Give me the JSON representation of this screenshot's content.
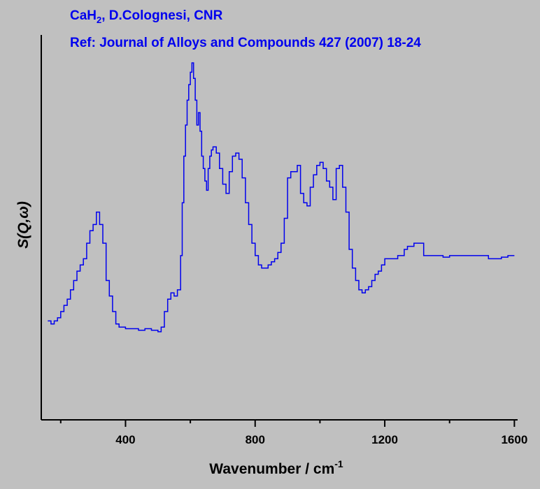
{
  "chart_data": {
    "type": "line",
    "title_line1": {
      "main": "CaH",
      "sub": "2",
      "rest": ", D.Colognesi, CNR"
    },
    "title_line2": "Ref: Journal of Alloys and Compounds 427 (2007) 18-24",
    "xlabel": {
      "main": "Wavenumber / cm",
      "sup": "-1"
    },
    "ylabel": "S(Q,ω)",
    "xlim": [
      140,
      1610
    ],
    "ylim": [
      0,
      1
    ],
    "x_ticks": [
      400,
      800,
      1200,
      1600
    ],
    "x_tick_labels": [
      "400",
      "800",
      "1200",
      "1600"
    ],
    "x_minor_ticks": [
      200,
      600,
      1000,
      1400
    ],
    "line_style": "step",
    "grid": false,
    "legend": "none",
    "colors": {
      "line": "#0000ee",
      "title": "#0000ee",
      "axes": "#000000",
      "background": "#c0c0c0"
    },
    "series": [
      {
        "x": [
          160,
          170,
          180,
          190,
          200,
          210,
          220,
          230,
          240,
          250,
          260,
          270,
          280,
          290,
          300,
          310,
          320,
          330,
          340,
          350,
          360,
          370,
          380,
          390,
          400,
          420,
          440,
          460,
          480,
          500,
          510,
          520,
          530,
          540,
          550,
          560,
          570,
          575,
          580,
          585,
          590,
          595,
          600,
          605,
          610,
          615,
          620,
          625,
          630,
          635,
          640,
          645,
          650,
          655,
          660,
          665,
          670,
          680,
          690,
          700,
          710,
          720,
          730,
          740,
          750,
          760,
          770,
          780,
          790,
          800,
          810,
          820,
          830,
          840,
          850,
          860,
          870,
          880,
          890,
          900,
          910,
          920,
          930,
          940,
          950,
          960,
          970,
          980,
          990,
          1000,
          1010,
          1020,
          1030,
          1040,
          1050,
          1060,
          1070,
          1080,
          1090,
          1100,
          1110,
          1120,
          1130,
          1140,
          1150,
          1160,
          1170,
          1180,
          1190,
          1200,
          1210,
          1220,
          1230,
          1240,
          1250,
          1260,
          1270,
          1280,
          1290,
          1300,
          1320,
          1340,
          1360,
          1380,
          1400,
          1420,
          1440,
          1460,
          1480,
          1500,
          1520,
          1540,
          1560,
          1580,
          1600
        ],
        "y": [
          0.17,
          0.16,
          0.17,
          0.18,
          0.2,
          0.22,
          0.24,
          0.27,
          0.3,
          0.33,
          0.35,
          0.37,
          0.42,
          0.46,
          0.48,
          0.52,
          0.48,
          0.42,
          0.3,
          0.25,
          0.2,
          0.16,
          0.15,
          0.15,
          0.145,
          0.145,
          0.14,
          0.145,
          0.14,
          0.135,
          0.15,
          0.2,
          0.24,
          0.26,
          0.25,
          0.27,
          0.38,
          0.55,
          0.7,
          0.8,
          0.88,
          0.93,
          0.97,
          1.0,
          0.95,
          0.88,
          0.8,
          0.84,
          0.78,
          0.7,
          0.66,
          0.62,
          0.59,
          0.66,
          0.7,
          0.72,
          0.73,
          0.71,
          0.66,
          0.61,
          0.58,
          0.65,
          0.7,
          0.71,
          0.69,
          0.63,
          0.55,
          0.48,
          0.42,
          0.38,
          0.35,
          0.34,
          0.34,
          0.35,
          0.36,
          0.37,
          0.39,
          0.42,
          0.5,
          0.63,
          0.65,
          0.65,
          0.67,
          0.58,
          0.55,
          0.54,
          0.6,
          0.64,
          0.67,
          0.68,
          0.66,
          0.62,
          0.6,
          0.56,
          0.66,
          0.67,
          0.6,
          0.52,
          0.4,
          0.34,
          0.3,
          0.27,
          0.26,
          0.27,
          0.28,
          0.3,
          0.32,
          0.33,
          0.35,
          0.37,
          0.37,
          0.37,
          0.37,
          0.38,
          0.38,
          0.4,
          0.41,
          0.41,
          0.42,
          0.42,
          0.38,
          0.38,
          0.38,
          0.375,
          0.38,
          0.38,
          0.38,
          0.38,
          0.38,
          0.38,
          0.37,
          0.37,
          0.375,
          0.38,
          0.38
        ]
      }
    ]
  }
}
